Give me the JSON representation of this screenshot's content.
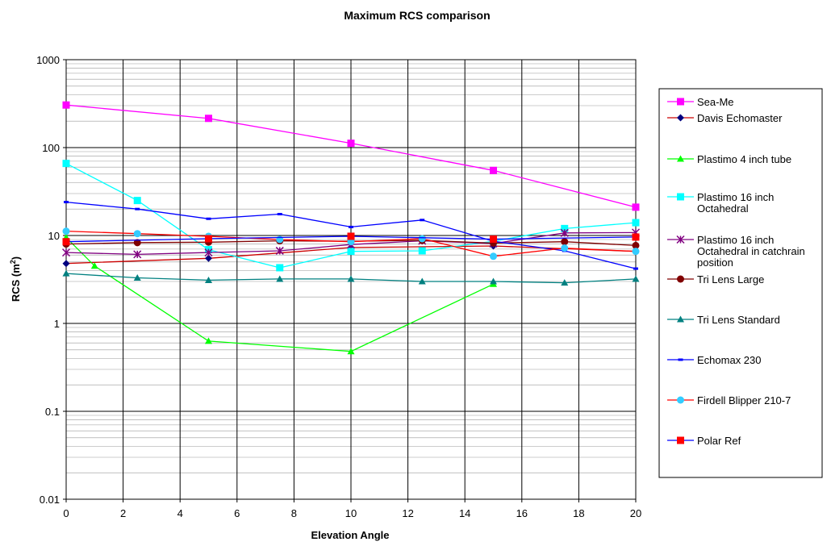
{
  "chart_data": {
    "type": "line",
    "title": "Maximum RCS comparison",
    "xlabel": "Elevation Angle",
    "ylabel": "RCS (m",
    "ylabel_sup": "2",
    "ylabel_tail": ")",
    "y_scale": "log",
    "xlim": [
      0,
      20
    ],
    "ylim": [
      0.01,
      1000
    ],
    "x_ticks": [
      "0",
      "2",
      "4",
      "6",
      "8",
      "10",
      "12",
      "14",
      "16",
      "18",
      "20"
    ],
    "y_ticks": [
      "0.01",
      "0.1",
      "1",
      "10",
      "100",
      "1000"
    ],
    "grid": true,
    "legend_position": "right",
    "series": [
      {
        "name": "Sea-Me",
        "color": "#ff00ff",
        "marker": "square",
        "x": [
          0,
          5,
          10,
          15,
          20
        ],
        "y": [
          305,
          215,
          112,
          55,
          21
        ]
      },
      {
        "name": "Davis Echomaster",
        "color": "#cc0000",
        "marker_color": "#000080",
        "marker": "diamond",
        "x": [
          0,
          5,
          10,
          15,
          20
        ],
        "y": [
          4.8,
          5.5,
          7.3,
          7.6,
          6.6
        ]
      },
      {
        "name": "Plastimo 4 inch tube",
        "color": "#00ff00",
        "marker": "triangle",
        "x": [
          0,
          1,
          5,
          10,
          15
        ],
        "y": [
          9.5,
          4.5,
          0.63,
          0.48,
          2.8
        ]
      },
      {
        "name": "Plastimo 16 inch\nOctahedral",
        "color": "#00ffff",
        "marker": "square",
        "x": [
          0,
          2.5,
          5,
          7.5,
          10,
          12.5,
          15,
          17.5,
          20
        ],
        "y": [
          66,
          25,
          6.9,
          4.3,
          6.6,
          6.7,
          8.6,
          12,
          14
        ]
      },
      {
        "name": "Plastimo 16 inch\nOctahedral in catchrain\nposition",
        "color": "#800080",
        "marker": "star",
        "x": [
          0,
          2.5,
          5,
          7.5,
          10,
          12.5,
          15,
          17.5,
          20
        ],
        "y": [
          6.4,
          6.1,
          6.4,
          6.7,
          7.9,
          8.7,
          8.1,
          10.7,
          10.8
        ]
      },
      {
        "name": "Tri Lens Large",
        "color": "#800000",
        "marker": "circle",
        "x": [
          0,
          2.5,
          5,
          7.5,
          10,
          12.5,
          15,
          17.5,
          20
        ],
        "y": [
          8.0,
          8.3,
          8.4,
          8.7,
          8.6,
          8.8,
          8.2,
          8.5,
          7.7
        ]
      },
      {
        "name": "Tri Lens Standard",
        "color": "#008080",
        "marker": "triangle",
        "x": [
          0,
          2.5,
          5,
          7.5,
          10,
          12.5,
          15,
          17.5,
          20
        ],
        "y": [
          3.7,
          3.3,
          3.1,
          3.2,
          3.2,
          3.0,
          3.0,
          2.9,
          3.2
        ]
      },
      {
        "name": "Echomax 230",
        "color": "#0000ff",
        "marker": "dash",
        "x": [
          0,
          2.5,
          5,
          7.5,
          10,
          12.5,
          15,
          17.5,
          20
        ],
        "y": [
          24,
          20,
          15.5,
          17.5,
          12.5,
          15,
          8.6,
          6.7,
          4.2
        ]
      },
      {
        "name": "Firdell Blipper 210-7",
        "color": "#ff0000",
        "marker_color": "#33ccff",
        "marker": "circle",
        "x": [
          0,
          2.5,
          5,
          7.5,
          10,
          12.5,
          15,
          17.5,
          20
        ],
        "y": [
          11.2,
          10.5,
          9.8,
          9.0,
          8.5,
          9.2,
          5.8,
          7.2,
          6.6
        ]
      },
      {
        "name": "Polar Ref",
        "color": "#0000ff",
        "marker_color": "#ff0000",
        "marker": "square",
        "x": [
          0,
          5,
          10,
          15,
          20
        ],
        "y": [
          8.5,
          9.2,
          9.8,
          9.1,
          9.6
        ]
      }
    ]
  }
}
